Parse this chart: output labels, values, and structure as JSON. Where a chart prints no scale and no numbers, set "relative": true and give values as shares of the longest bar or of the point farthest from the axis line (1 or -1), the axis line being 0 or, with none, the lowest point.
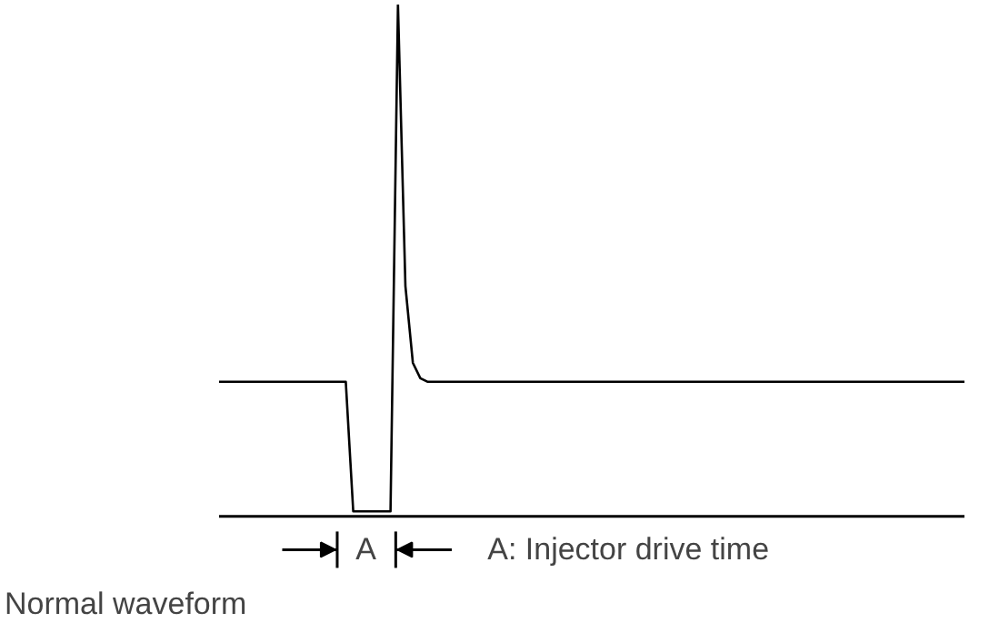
{
  "chart_data": {
    "type": "line",
    "relative": true,
    "tick_labels": false,
    "grid": false,
    "categories": [
      null,
      null,
      null,
      null,
      null,
      null,
      null,
      null,
      null,
      null,
      null,
      null,
      null,
      null,
      null,
      null,
      null,
      null,
      null,
      null,
      null,
      null,
      null,
      null,
      null,
      null,
      null,
      null,
      null,
      null,
      null,
      null,
      null,
      null,
      null,
      null,
      null,
      null,
      null,
      null,
      null,
      null,
      null,
      null,
      null,
      null,
      null,
      null,
      null,
      null,
      null,
      null,
      null,
      null,
      null,
      null,
      null,
      null,
      null,
      null,
      null,
      null,
      null,
      null,
      null,
      null,
      null,
      null,
      null,
      null,
      null,
      null,
      null,
      null,
      null,
      null,
      null,
      null,
      null,
      null,
      null,
      null,
      null,
      null,
      null,
      null,
      null,
      null,
      null,
      null,
      null,
      null,
      null,
      null,
      null,
      null,
      null,
      null,
      null,
      null,
      null
    ],
    "series": [
      {
        "color": "#000000",
        "values": [
          0.263,
          0.263,
          0.263,
          0.263,
          0.263,
          0.263,
          0.263,
          0.263,
          0.263,
          0.263,
          0.263,
          0.263,
          0.263,
          0.263,
          0.263,
          0.263,
          0.263,
          0.263,
          0.01,
          0.01,
          0.01,
          0.01,
          0.01,
          0.01,
          1,
          0.45,
          0.3,
          0.27,
          0.263,
          0.263,
          0.263,
          0.263,
          0.263,
          0.263,
          0.263,
          0.263,
          0.263,
          0.263,
          0.263,
          0.263,
          0.263,
          0.263,
          0.263,
          0.263,
          0.263,
          0.263,
          0.263,
          0.263,
          0.263,
          0.263,
          0.263,
          0.263,
          0.263,
          0.263,
          0.263,
          0.263,
          0.263,
          0.263,
          0.263,
          0.263,
          0.263,
          0.263,
          0.263,
          0.263,
          0.263,
          0.263,
          0.263,
          0.263,
          0.263,
          0.263,
          0.263,
          0.263,
          0.263,
          0.263,
          0.263,
          0.263,
          0.263,
          0.263,
          0.263,
          0.263,
          0.263,
          0.263,
          0.263,
          0.263,
          0.263,
          0.263,
          0.263,
          0.263,
          0.263,
          0.263,
          0.263,
          0.263,
          0.263,
          0.263,
          0.263,
          0.263,
          0.263,
          0.263,
          0.263,
          0.263,
          0.263
        ]
      }
    ],
    "annotations": [
      "A",
      "A: Injector drive time",
      "Normal waveform"
    ]
  }
}
